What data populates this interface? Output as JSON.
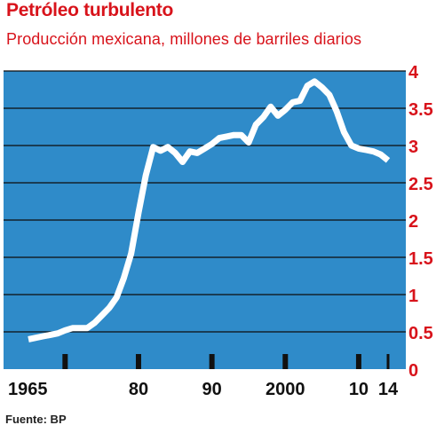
{
  "header": {
    "title": "Petróleo turbulento",
    "subtitle": "Producción mexicana, millones de barriles diarios"
  },
  "footer": {
    "source": "Fuente: BP"
  },
  "colors": {
    "plot_bg": "#2f8bc9",
    "gridline": "#0d0d0d",
    "line": "#ffffff",
    "accent": "#d8131b"
  },
  "chart_data": {
    "type": "line",
    "title": "Petróleo turbulento",
    "subtitle": "Producción mexicana, millones de barriles diarios",
    "xlabel": "",
    "ylabel": "",
    "ylim": [
      0,
      4
    ],
    "xlim": [
      1965,
      2014
    ],
    "y_ticks": [
      "0",
      "0.5",
      "1",
      "1.5",
      "2",
      "2.5",
      "3",
      "3.5",
      "4"
    ],
    "x_ticks": [
      {
        "year": 1965,
        "label": "1965"
      },
      {
        "year": 1980,
        "label": "80"
      },
      {
        "year": 1990,
        "label": "90"
      },
      {
        "year": 2000,
        "label": "2000"
      },
      {
        "year": 2010,
        "label": "10"
      },
      {
        "year": 2014,
        "label": "14"
      }
    ],
    "grid": true,
    "y_axis_side": "right",
    "series": [
      {
        "x": [
          1965,
          1966,
          1967,
          1968,
          1969,
          1970,
          1971,
          1972,
          1973,
          1974,
          1975,
          1976,
          1977,
          1978,
          1979,
          1980,
          1981,
          1982,
          1983,
          1984,
          1985,
          1986,
          1987,
          1988,
          1989,
          1990,
          1991,
          1992,
          1993,
          1994,
          1995,
          1996,
          1997,
          1998,
          1999,
          2000,
          2001,
          2002,
          2003,
          2004,
          2005,
          2006,
          2007,
          2008,
          2009,
          2010,
          2011,
          2012,
          2013,
          2014
        ],
        "y": [
          0.4,
          0.42,
          0.44,
          0.46,
          0.48,
          0.52,
          0.55,
          0.55,
          0.55,
          0.62,
          0.72,
          0.82,
          0.96,
          1.22,
          1.55,
          2.1,
          2.6,
          2.98,
          2.93,
          2.98,
          2.9,
          2.78,
          2.92,
          2.9,
          2.96,
          3.02,
          3.1,
          3.12,
          3.14,
          3.14,
          3.04,
          3.28,
          3.38,
          3.52,
          3.4,
          3.48,
          3.58,
          3.6,
          3.8,
          3.86,
          3.78,
          3.68,
          3.46,
          3.18,
          3.0,
          2.96,
          2.94,
          2.92,
          2.88,
          2.8
        ]
      }
    ]
  }
}
